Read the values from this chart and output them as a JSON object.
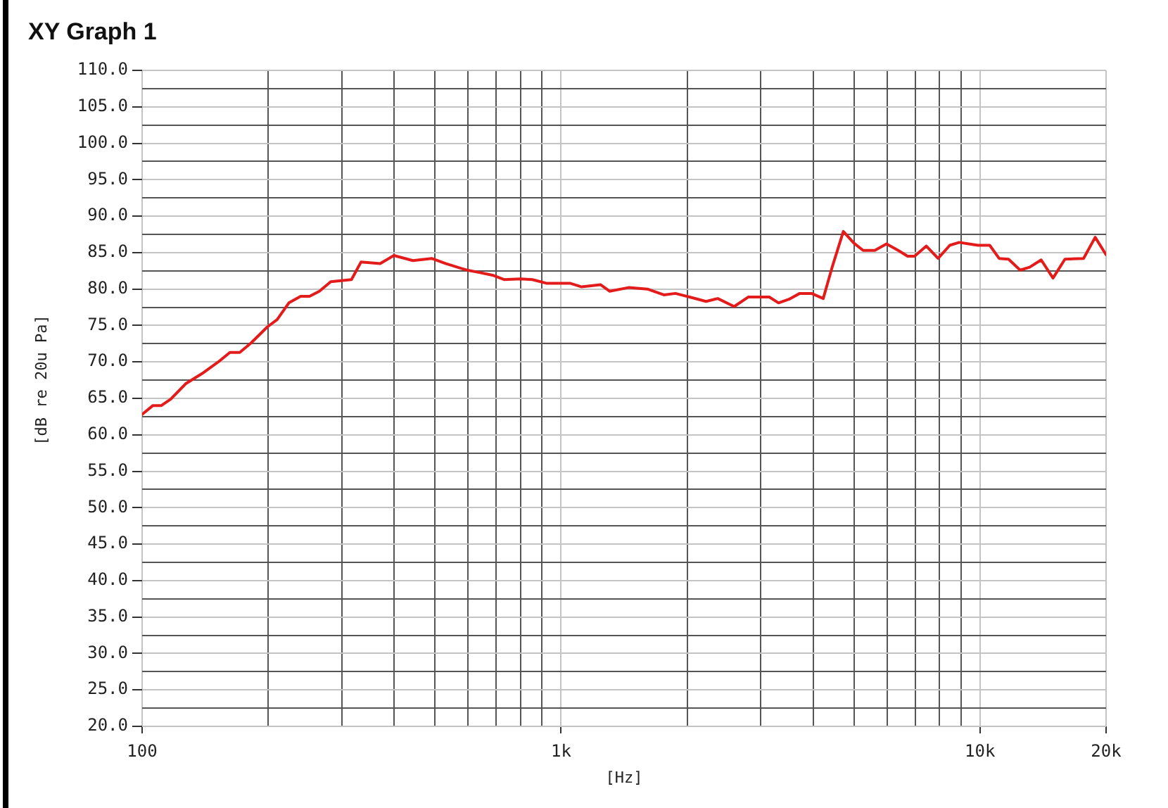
{
  "chart_data": {
    "type": "line",
    "title": "XY Graph 1",
    "xlabel": "[Hz]",
    "ylabel": "[dB re 20u Pa]",
    "log": "x",
    "grid": true,
    "color": "#e31b1b",
    "xlim": [
      100,
      20000
    ],
    "xticks": [
      {
        "value": 100,
        "label": "100"
      },
      {
        "value": 200,
        "label": null
      },
      {
        "value": 300,
        "label": null
      },
      {
        "value": 400,
        "label": null
      },
      {
        "value": 500,
        "label": null
      },
      {
        "value": 600,
        "label": null
      },
      {
        "value": 700,
        "label": null
      },
      {
        "value": 800,
        "label": null
      },
      {
        "value": 900,
        "label": null
      },
      {
        "value": 1000,
        "label": "1k"
      },
      {
        "value": 2000,
        "label": null
      },
      {
        "value": 3000,
        "label": null
      },
      {
        "value": 4000,
        "label": null
      },
      {
        "value": 5000,
        "label": null
      },
      {
        "value": 6000,
        "label": null
      },
      {
        "value": 7000,
        "label": null
      },
      {
        "value": 8000,
        "label": null
      },
      {
        "value": 9000,
        "label": null
      },
      {
        "value": 10000,
        "label": "10k"
      },
      {
        "value": 20000,
        "label": "20k"
      }
    ],
    "ylim": [
      20,
      110
    ],
    "yticks": [
      {
        "value": 20,
        "label": "20.0"
      },
      {
        "value": 22.5,
        "label": null
      },
      {
        "value": 25,
        "label": "25.0"
      },
      {
        "value": 27.5,
        "label": null
      },
      {
        "value": 30,
        "label": "30.0"
      },
      {
        "value": 32.5,
        "label": null
      },
      {
        "value": 35,
        "label": "35.0"
      },
      {
        "value": 37.5,
        "label": null
      },
      {
        "value": 40,
        "label": "40.0"
      },
      {
        "value": 42.5,
        "label": null
      },
      {
        "value": 45,
        "label": "45.0"
      },
      {
        "value": 47.5,
        "label": null
      },
      {
        "value": 50,
        "label": "50.0"
      },
      {
        "value": 52.5,
        "label": null
      },
      {
        "value": 55,
        "label": "55.0"
      },
      {
        "value": 57.5,
        "label": null
      },
      {
        "value": 60,
        "label": "60.0"
      },
      {
        "value": 62.5,
        "label": null
      },
      {
        "value": 65,
        "label": "65.0"
      },
      {
        "value": 67.5,
        "label": null
      },
      {
        "value": 70,
        "label": "70.0"
      },
      {
        "value": 72.5,
        "label": null
      },
      {
        "value": 75,
        "label": "75.0"
      },
      {
        "value": 77.5,
        "label": null
      },
      {
        "value": 80,
        "label": "80.0"
      },
      {
        "value": 82.5,
        "label": null
      },
      {
        "value": 85,
        "label": "85.0"
      },
      {
        "value": 87.5,
        "label": null
      },
      {
        "value": 90,
        "label": "90.0"
      },
      {
        "value": 92.5,
        "label": null
      },
      {
        "value": 95,
        "label": "95.0"
      },
      {
        "value": 97.5,
        "label": null
      },
      {
        "value": 100,
        "label": "100.0"
      },
      {
        "value": 102.5,
        "label": null
      },
      {
        "value": 105,
        "label": "105.0"
      },
      {
        "value": 107.5,
        "label": null
      },
      {
        "value": 110,
        "label": "110.0"
      }
    ],
    "x": [
      100,
      106,
      111,
      117,
      127,
      139,
      152,
      162,
      171,
      182,
      199,
      210,
      224,
      239,
      251,
      265,
      282,
      316,
      333,
      370,
      399,
      443,
      491,
      530,
      580,
      596,
      635,
      686,
      731,
      801,
      854,
      922,
      1050,
      1120,
      1242,
      1307,
      1449,
      1607,
      1759,
      1875,
      2027,
      2219,
      2366,
      2590,
      2797,
      3141,
      3305,
      3500,
      3713,
      3963,
      4225,
      4448,
      4719,
      5000,
      5260,
      5610,
      5985,
      6380,
      6717,
      6982,
      7447,
      7945,
      8472,
      8925,
      9398,
      9891,
      10550,
      11110,
      11700,
      12470,
      13140,
      14000,
      14940,
      15950,
      17670,
      18840,
      20000
    ],
    "values": [
      62.8,
      64.0,
      64.0,
      64.9,
      67.0,
      68.4,
      70.0,
      71.3,
      71.3,
      72.6,
      74.8,
      75.8,
      78.1,
      79.0,
      79.0,
      79.7,
      81.0,
      81.3,
      83.7,
      83.5,
      84.6,
      83.9,
      84.2,
      83.5,
      82.8,
      82.6,
      82.3,
      81.9,
      81.3,
      81.4,
      81.3,
      80.8,
      80.8,
      80.3,
      80.6,
      79.7,
      80.2,
      80.0,
      79.2,
      79.4,
      78.9,
      78.3,
      78.7,
      77.6,
      78.9,
      78.9,
      78.1,
      78.6,
      79.4,
      79.4,
      78.7,
      83.2,
      87.9,
      86.3,
      85.3,
      85.3,
      86.2,
      85.3,
      84.5,
      84.5,
      85.9,
      84.2,
      86.0,
      86.4,
      86.2,
      86.0,
      86.0,
      84.2,
      84.1,
      82.6,
      83.0,
      84.0,
      81.5,
      84.1,
      84.2,
      87.1,
      84.7
    ]
  }
}
